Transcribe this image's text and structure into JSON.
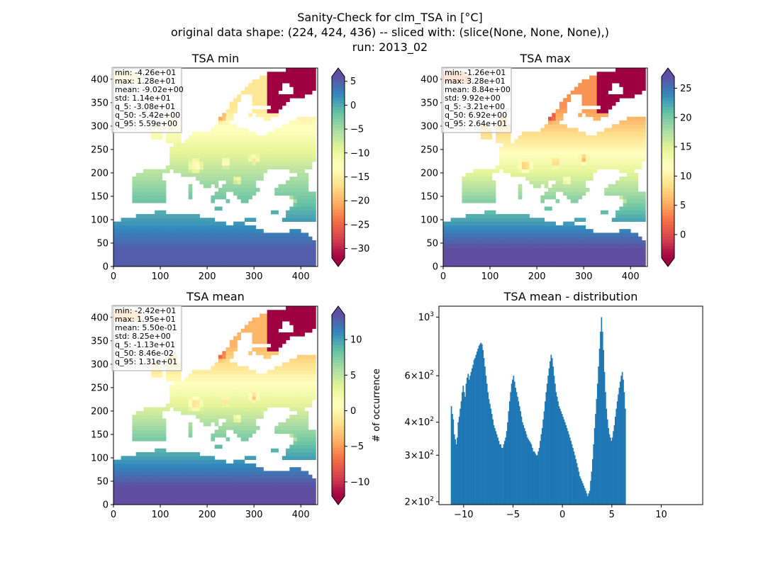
{
  "figure": {
    "title_lines": [
      "Sanity-Check for clm_TSA in [°C]",
      "original data shape: (224, 424, 436) -- sliced with: (slice(None, None, None),)",
      "run: 2013_02"
    ]
  },
  "colors": {
    "cmap": [
      "#5e4fa2",
      "#3288bd",
      "#66c2a5",
      "#abdda4",
      "#e6f598",
      "#ffffbf",
      "#fee08b",
      "#fdae61",
      "#f46d43",
      "#d53e4f",
      "#9e0142"
    ],
    "sea": "#ffffff",
    "histogram": "#1f77b4"
  },
  "chart_data": [
    {
      "type": "heatmap",
      "title": "TSA min",
      "xlim": [
        0,
        436
      ],
      "ylim": [
        0,
        424
      ],
      "xticks": [
        0,
        100,
        200,
        300,
        400
      ],
      "yticks": [
        0,
        50,
        100,
        150,
        200,
        250,
        300,
        350,
        400
      ],
      "colorbar": {
        "vmin": -32,
        "vmax": 6,
        "ticks": [
          5,
          0,
          -5,
          -10,
          -15,
          -20,
          -25,
          -30
        ],
        "extend": "both"
      },
      "stats": [
        "min: -4.26e+01",
        "max: 1.28e+01",
        "mean: -9.02e+00",
        "std: 1.14e+01",
        "q_5: -3.08e+01",
        "q_50: -5.42e+00",
        "q_95: 5.59e+00"
      ],
      "value_model": {
        "south": 5.0,
        "north": -16.0,
        "arctic": -32.0
      }
    },
    {
      "type": "heatmap",
      "title": "TSA max",
      "xlim": [
        0,
        436
      ],
      "ylim": [
        0,
        424
      ],
      "xticks": [
        0,
        100,
        200,
        300,
        400
      ],
      "yticks": [
        0,
        50,
        100,
        150,
        200,
        250,
        300,
        350,
        400
      ],
      "colorbar": {
        "vmin": -4,
        "vmax": 27,
        "ticks": [
          25,
          20,
          15,
          10,
          5,
          0
        ],
        "extend": "both"
      },
      "stats": [
        "min: -1.26e+01",
        "max: 3.28e+01",
        "mean: 8.84e+00",
        "std: 9.92e+00",
        "q_5: -3.21e+00",
        "q_50: 6.92e+00",
        "q_95: 2.64e+01"
      ],
      "value_model": {
        "south": 27.0,
        "north": 4.0,
        "arctic": -4.0
      }
    },
    {
      "type": "heatmap",
      "title": "TSA mean",
      "xlim": [
        0,
        436
      ],
      "ylim": [
        0,
        424
      ],
      "xticks": [
        0,
        100,
        200,
        300,
        400
      ],
      "yticks": [
        0,
        50,
        100,
        150,
        200,
        250,
        300,
        350,
        400
      ],
      "colorbar": {
        "vmin": -12,
        "vmax": 13.5,
        "ticks": [
          10,
          5,
          0,
          -5,
          -10
        ],
        "extend": "both"
      },
      "stats": [
        "min: -2.42e+01",
        "max: 1.95e+01",
        "mean: 5.50e-01",
        "std: 8.25e+00",
        "q_5: -1.13e+01",
        "q_50: 8.46e-02",
        "q_95: 1.31e+01"
      ],
      "value_model": {
        "south": 13.5,
        "north": -4.0,
        "arctic": -12.0
      }
    },
    {
      "type": "histogram",
      "title": "TSA mean - distribution",
      "ylabel": "# of occurrence",
      "yscale": "log",
      "xlim": [
        -12.5,
        14.2
      ],
      "ylim": [
        195,
        1100
      ],
      "xticks": [
        -10,
        -5,
        0,
        5,
        10
      ],
      "xticklabels": [
        "−10",
        "−5",
        "0",
        "5",
        "10"
      ],
      "yticks": [
        {
          "value": 1000,
          "base": "10",
          "exp": "3"
        },
        {
          "value": 600,
          "base": "6×10",
          "exp": "2"
        },
        {
          "value": 400,
          "base": "4×10",
          "exp": "2"
        },
        {
          "value": 300,
          "base": "3×10",
          "exp": "2"
        },
        {
          "value": 200,
          "base": "2×10",
          "exp": "2"
        }
      ],
      "bin_start": -11.3,
      "bin_width": 0.1,
      "counts": [
        460,
        430,
        410,
        360,
        345,
        330,
        350,
        400,
        420,
        450,
        480,
        520,
        550,
        520,
        500,
        560,
        590,
        610,
        580,
        600,
        620,
        640,
        660,
        690,
        700,
        720,
        740,
        760,
        780,
        790,
        800,
        790,
        750,
        700,
        650,
        600,
        560,
        520,
        490,
        470,
        450,
        430,
        410,
        390,
        380,
        370,
        360,
        350,
        340,
        330,
        330,
        320,
        320,
        330,
        340,
        350,
        370,
        400,
        440,
        480,
        520,
        560,
        580,
        600,
        570,
        540,
        520,
        500,
        480,
        460,
        440,
        420,
        400,
        390,
        380,
        370,
        360,
        350,
        345,
        340,
        335,
        330,
        320,
        310,
        310,
        305,
        300,
        300,
        310,
        320,
        340,
        360,
        380,
        410,
        440,
        480,
        520,
        560,
        600,
        640,
        680,
        720,
        700,
        650,
        600,
        560,
        520,
        500,
        480,
        460,
        450,
        440,
        430,
        420,
        410,
        400,
        390,
        380,
        370,
        360,
        350,
        340,
        330,
        320,
        310,
        300,
        290,
        280,
        270,
        260,
        250,
        245,
        240,
        235,
        230,
        225,
        220,
        215,
        210,
        215,
        220,
        240,
        260,
        290,
        330,
        380,
        430,
        490,
        560,
        650,
        760,
        880,
        1000,
        880,
        750,
        620,
        520,
        450,
        410,
        380,
        360,
        350,
        340,
        350,
        370,
        390,
        420,
        450,
        480,
        510,
        540,
        570,
        600,
        620,
        580,
        520,
        450
      ]
    }
  ]
}
